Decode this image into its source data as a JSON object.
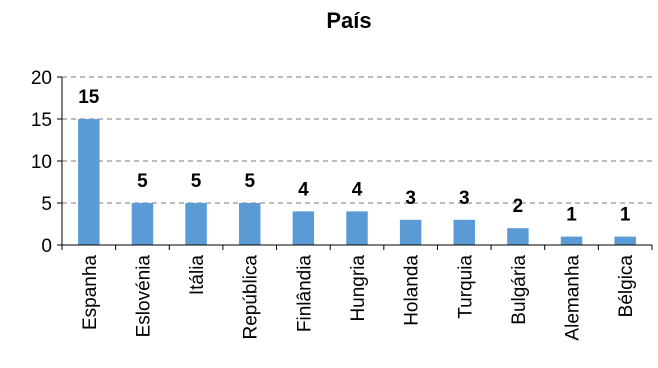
{
  "chart_data": {
    "type": "bar",
    "title": "País",
    "xlabel": "",
    "ylabel": "",
    "categories": [
      "Espanha",
      "Eslovénia",
      "Itália",
      "República",
      "Finlândia",
      "Hungria",
      "Holanda",
      "Turquia",
      "Bulgária",
      "Alemanha",
      "Bélgica"
    ],
    "values": [
      15,
      5,
      5,
      5,
      4,
      4,
      3,
      3,
      2,
      1,
      1
    ],
    "ylim": [
      0,
      20
    ],
    "yticks": [
      0,
      5,
      10,
      15,
      20
    ],
    "grid": true,
    "legend": "none",
    "colors": {
      "bar": "#5B9BD5",
      "grid": "#A6A6A6",
      "axis": "#000000"
    }
  }
}
